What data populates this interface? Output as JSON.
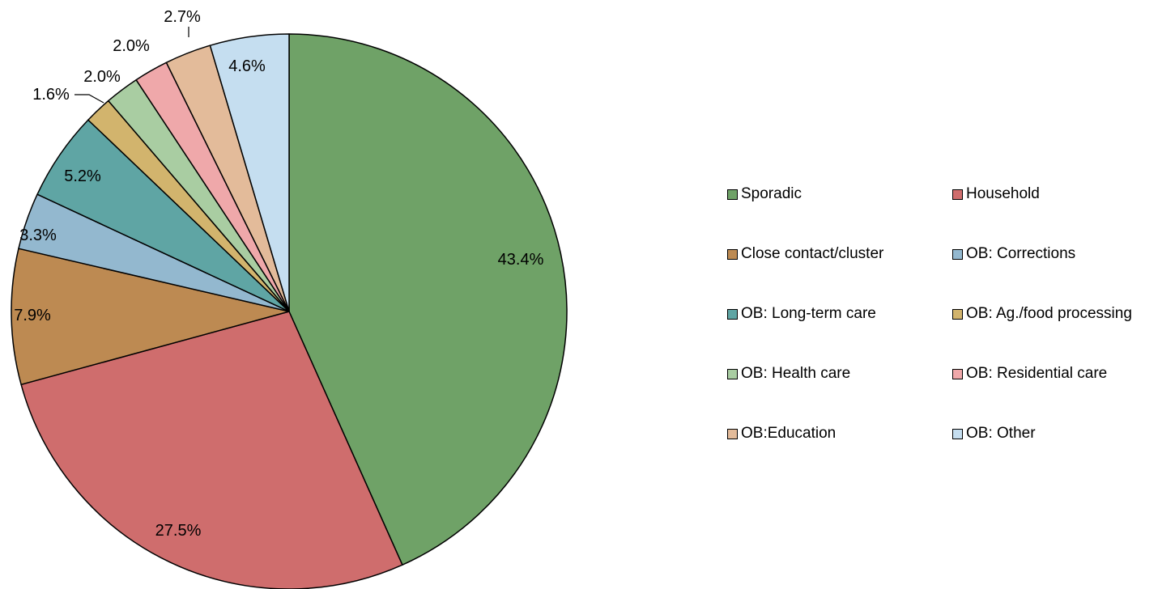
{
  "chart_data": {
    "type": "pie",
    "title": "",
    "slices": [
      {
        "label": "Sporadic",
        "value": 43.4,
        "display": "43.4%",
        "color": "#6fa267"
      },
      {
        "label": "Household",
        "value": 27.5,
        "display": "27.5%",
        "color": "#cf6d6d"
      },
      {
        "label": "Close contact/cluster",
        "value": 7.9,
        "display": "7.9%",
        "color": "#bd8a52"
      },
      {
        "label": "OB: Corrections",
        "value": 3.3,
        "display": "3.3%",
        "color": "#93b8cf"
      },
      {
        "label": "OB: Long-term care",
        "value": 5.2,
        "display": "5.2%",
        "color": "#5fa5a4"
      },
      {
        "label": "OB: Ag./food processing",
        "value": 1.6,
        "display": "1.6%",
        "color": "#d2b46d"
      },
      {
        "label": "OB: Health care",
        "value": 2.0,
        "display": "2.0%",
        "color": "#a9cda2"
      },
      {
        "label": "OB: Residential care",
        "value": 2.0,
        "display": "2.0%",
        "color": "#efa8aa"
      },
      {
        "label": "OB:Education",
        "value": 2.7,
        "display": "2.7%",
        "color": "#e3bb9a"
      },
      {
        "label": "OB: Other",
        "value": 4.6,
        "display": "4.6%",
        "color": "#c5def0"
      }
    ],
    "legend_position": "right",
    "start_angle": "12 o'clock, clockwise"
  }
}
